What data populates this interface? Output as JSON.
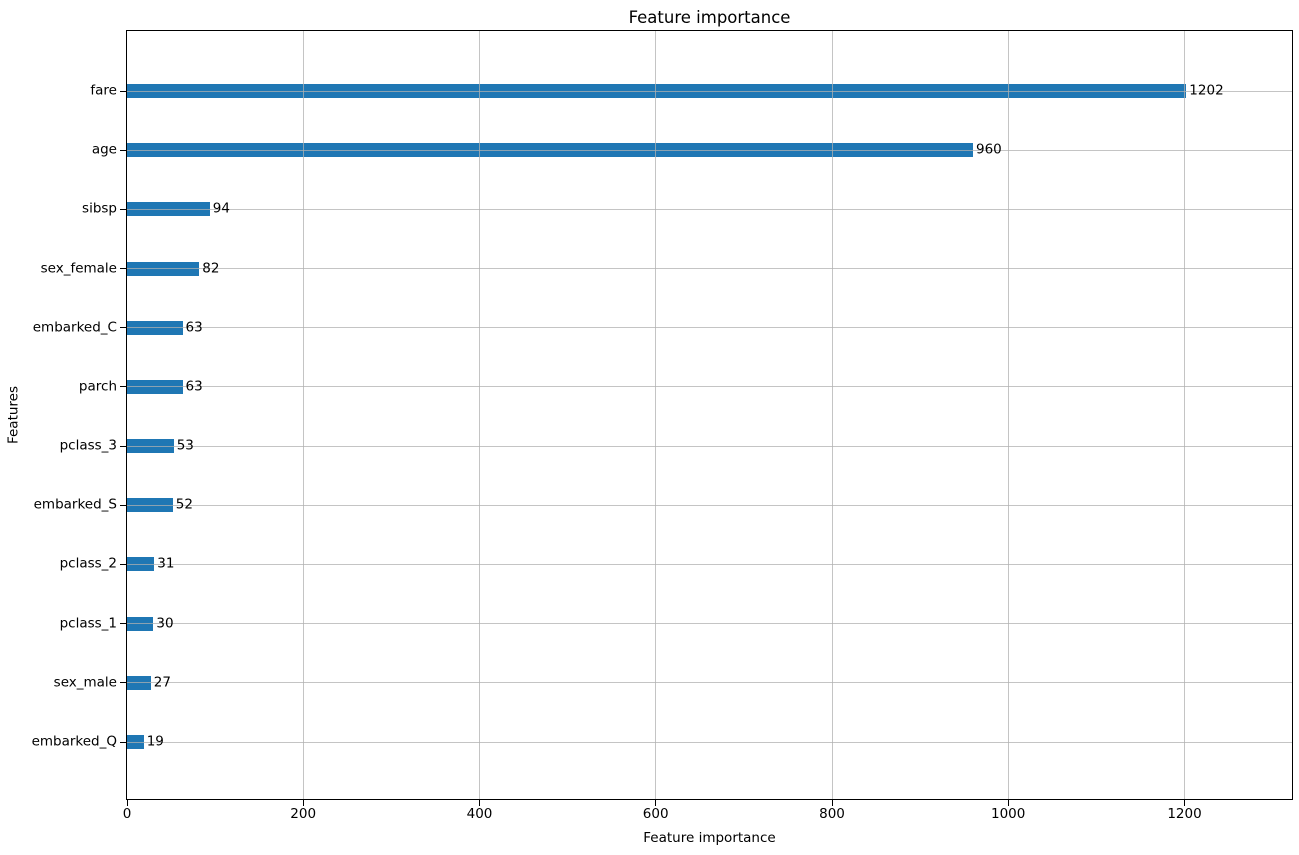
{
  "chart_data": {
    "type": "bar",
    "orientation": "horizontal",
    "title": "Feature importance",
    "xlabel": "Feature importance",
    "ylabel": "Features",
    "categories": [
      "fare",
      "age",
      "sibsp",
      "sex_female",
      "embarked_C",
      "parch",
      "pclass_3",
      "embarked_S",
      "pclass_2",
      "pclass_1",
      "sex_male",
      "embarked_Q"
    ],
    "values": [
      1202,
      960,
      94,
      82,
      63,
      63,
      53,
      52,
      31,
      30,
      27,
      19
    ],
    "value_labels": [
      "1202",
      "960",
      "94",
      "82",
      "63",
      "63",
      "53",
      "52",
      "31",
      "30",
      "27",
      "19"
    ],
    "xlim": [
      0,
      1322
    ],
    "xticks": [
      0,
      200,
      400,
      600,
      800,
      1000,
      1200
    ],
    "grid": true,
    "legend_position": "none",
    "bar_color": "#1f77b4",
    "grid_color": "#b0b0b0",
    "spine_color": "#000000",
    "background_color": "#ffffff"
  }
}
